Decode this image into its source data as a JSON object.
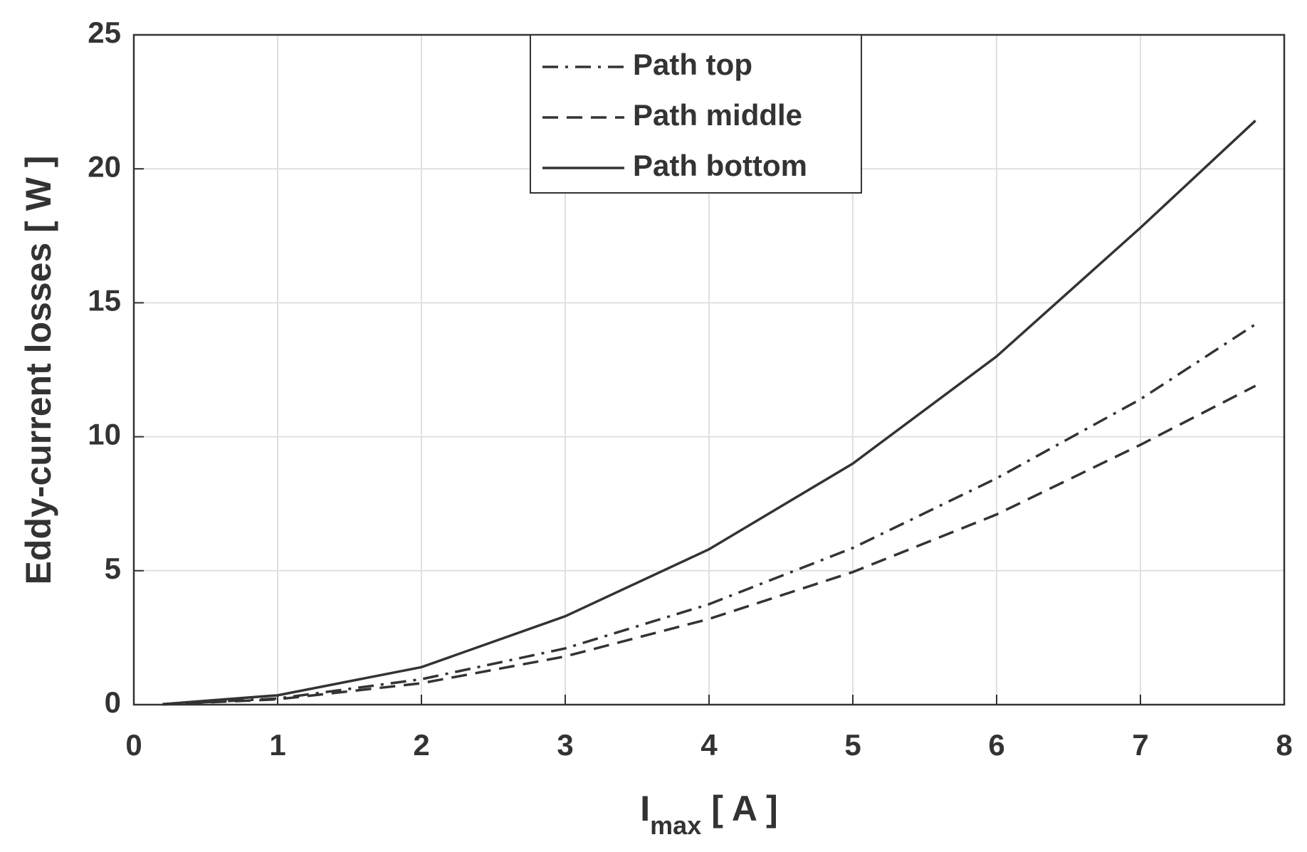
{
  "chart_data": {
    "type": "line",
    "xlabel": {
      "main": "I",
      "sub": "max",
      "unit": "[ A ]"
    },
    "ylabel": "Eddy-current losses [ W ]",
    "x": [
      0.2,
      1,
      2,
      3,
      4,
      5,
      6,
      7,
      7.8
    ],
    "series": [
      {
        "name": "Path top",
        "color": "#333333",
        "dash": "dashdot",
        "values": [
          0.01,
          0.23,
          0.95,
          2.1,
          3.75,
          5.85,
          8.45,
          11.4,
          14.2
        ]
      },
      {
        "name": "Path middle",
        "color": "#333333",
        "dash": "dashed",
        "values": [
          0.01,
          0.2,
          0.8,
          1.8,
          3.2,
          4.95,
          7.1,
          9.7,
          11.9
        ]
      },
      {
        "name": "Path bottom",
        "color": "#333333",
        "dash": "solid",
        "values": [
          0.02,
          0.35,
          1.4,
          3.3,
          5.8,
          9.0,
          13.0,
          17.8,
          21.8
        ]
      }
    ],
    "xlim": [
      0,
      8
    ],
    "xticks": [
      0,
      1,
      2,
      3,
      4,
      5,
      6,
      7,
      8
    ],
    "ylim": [
      0,
      25
    ],
    "yticks": [
      0,
      5,
      10,
      15,
      20,
      25
    ],
    "grid": true,
    "legend": "top"
  }
}
